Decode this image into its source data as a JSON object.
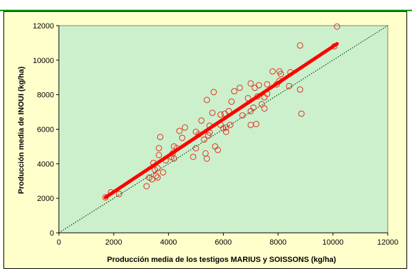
{
  "chart_data": {
    "type": "scatter",
    "xlabel": "Producción media de los testigos MARIUS y SOISSONS (kg/ha)",
    "ylabel": "Producción media de INOUI (kg/ha)",
    "xlim": [
      0,
      12000
    ],
    "ylim": [
      0,
      12000
    ],
    "x_ticks": [
      "0",
      "2000",
      "4000",
      "6000",
      "8000",
      "10000",
      "12000"
    ],
    "y_ticks": [
      "0",
      "2000",
      "4000",
      "6000",
      "8000",
      "10000",
      "12000"
    ],
    "grid": false,
    "plot_background": "#ccf0cc",
    "outer_background": "#ffffcc",
    "marker_color": "#e03020",
    "trend_color": "#ff0000",
    "reference_color": "#004400",
    "points": [
      [
        1700,
        2050
      ],
      [
        1900,
        2350
      ],
      [
        2200,
        2250
      ],
      [
        3200,
        2700
      ],
      [
        3300,
        3200
      ],
      [
        3400,
        3100
      ],
      [
        3450,
        4050
      ],
      [
        3500,
        3650
      ],
      [
        3550,
        3300
      ],
      [
        3600,
        3200
      ],
      [
        3600,
        3750
      ],
      [
        3650,
        4500
      ],
      [
        3650,
        4900
      ],
      [
        3700,
        5550
      ],
      [
        3800,
        3500
      ],
      [
        3900,
        4200
      ],
      [
        4100,
        4400
      ],
      [
        4150,
        4600
      ],
      [
        4200,
        5000
      ],
      [
        4200,
        4300
      ],
      [
        4300,
        4900
      ],
      [
        4400,
        5900
      ],
      [
        4500,
        5500
      ],
      [
        4600,
        6100
      ],
      [
        4900,
        4400
      ],
      [
        5000,
        4900
      ],
      [
        5000,
        5850
      ],
      [
        5100,
        5700
      ],
      [
        5200,
        6500
      ],
      [
        5300,
        5400
      ],
      [
        5350,
        4600
      ],
      [
        5400,
        7700
      ],
      [
        5400,
        4300
      ],
      [
        5450,
        5650
      ],
      [
        5500,
        5800
      ],
      [
        5500,
        6200
      ],
      [
        5600,
        6950
      ],
      [
        5650,
        8150
      ],
      [
        5700,
        5000
      ],
      [
        5800,
        4800
      ],
      [
        5900,
        6250
      ],
      [
        5900,
        6850
      ],
      [
        6000,
        6050
      ],
      [
        6050,
        6900
      ],
      [
        6100,
        6100
      ],
      [
        6100,
        5850
      ],
      [
        6200,
        7050
      ],
      [
        6250,
        6250
      ],
      [
        6300,
        7600
      ],
      [
        6400,
        8200
      ],
      [
        6600,
        8400
      ],
      [
        6700,
        6800
      ],
      [
        6900,
        7800
      ],
      [
        7000,
        7050
      ],
      [
        7000,
        8650
      ],
      [
        7000,
        6250
      ],
      [
        7100,
        7250
      ],
      [
        7150,
        8400
      ],
      [
        7200,
        6300
      ],
      [
        7250,
        7900
      ],
      [
        7300,
        8550
      ],
      [
        7400,
        7450
      ],
      [
        7500,
        7850
      ],
      [
        7500,
        7200
      ],
      [
        7600,
        8050
      ],
      [
        7600,
        8600
      ],
      [
        7800,
        9350
      ],
      [
        7950,
        8600
      ],
      [
        8050,
        8800
      ],
      [
        8050,
        9350
      ],
      [
        8100,
        9200
      ],
      [
        8400,
        8500
      ],
      [
        8450,
        9300
      ],
      [
        8800,
        8300
      ],
      [
        8800,
        10850
      ],
      [
        8850,
        6900
      ],
      [
        10050,
        10800
      ],
      [
        10150,
        11950
      ]
    ],
    "trend_line": [
      [
        1700,
        2050
      ],
      [
        10150,
        10950
      ]
    ],
    "reference_line": [
      [
        0,
        0
      ],
      [
        12000,
        12000
      ]
    ]
  }
}
